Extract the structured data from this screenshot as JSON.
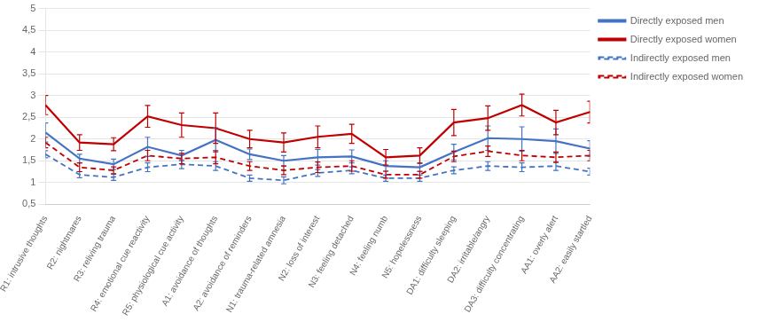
{
  "chart_data": {
    "type": "line",
    "categories": [
      "R1: intrusive thoughts",
      "R2: nightmares",
      "R3: reliving trauma",
      "R4: emotional cue reactivity",
      "R5: physiological cue activity",
      "A1: avoidance of thoughts",
      "A2: avoidance of reminders",
      "N1: trauma-related amnesia",
      "N2: loss of interest",
      "N3: feeling detached",
      "N4: feeling numb",
      "N5: hopelessness",
      "DA1: difficulty sleeping",
      "DA2: irritable/angry",
      "DA3: difficulty concentrating",
      "AA1: overly alert",
      "AA2: easily startled"
    ],
    "series": [
      {
        "name": "Directly exposed men",
        "color": "#4472c4",
        "line_style": "solid",
        "values": [
          2.15,
          1.55,
          1.42,
          1.82,
          1.62,
          1.98,
          1.65,
          1.5,
          1.58,
          1.6,
          1.38,
          1.35,
          1.7,
          2.02,
          2.0,
          1.95,
          1.78
        ],
        "errors": [
          0.22,
          0.1,
          0.12,
          0.22,
          0.12,
          0.28,
          0.12,
          0.12,
          0.18,
          0.15,
          0.12,
          0.1,
          0.18,
          0.28,
          0.28,
          0.28,
          0.18
        ]
      },
      {
        "name": "Directly exposed women",
        "color": "#c00000",
        "line_style": "solid",
        "values": [
          2.78,
          1.92,
          1.88,
          2.52,
          2.32,
          2.25,
          2.0,
          1.92,
          2.05,
          2.12,
          1.58,
          1.62,
          2.38,
          2.48,
          2.78,
          2.38,
          2.62
        ],
        "errors": [
          0.22,
          0.18,
          0.15,
          0.25,
          0.28,
          0.35,
          0.2,
          0.22,
          0.25,
          0.22,
          0.18,
          0.18,
          0.3,
          0.28,
          0.25,
          0.28,
          0.25
        ]
      },
      {
        "name": "Indirectly exposed men",
        "color": "#4472c4",
        "line_style": "dashed",
        "values": [
          1.65,
          1.18,
          1.12,
          1.35,
          1.42,
          1.38,
          1.1,
          1.05,
          1.22,
          1.28,
          1.1,
          1.1,
          1.28,
          1.38,
          1.35,
          1.38,
          1.25
        ],
        "errors": [
          0.08,
          0.07,
          0.07,
          0.1,
          0.1,
          0.1,
          0.07,
          0.08,
          0.08,
          0.08,
          0.07,
          0.07,
          0.08,
          0.1,
          0.1,
          0.1,
          0.08
        ]
      },
      {
        "name": "Indirectly exposed women",
        "color": "#c00000",
        "line_style": "dashed",
        "values": [
          1.92,
          1.35,
          1.28,
          1.62,
          1.55,
          1.58,
          1.38,
          1.28,
          1.35,
          1.38,
          1.18,
          1.18,
          1.6,
          1.72,
          1.62,
          1.58,
          1.62
        ],
        "errors": [
          0.12,
          0.1,
          0.08,
          0.12,
          0.12,
          0.15,
          0.1,
          0.1,
          0.12,
          0.12,
          0.08,
          0.08,
          0.12,
          0.12,
          0.12,
          0.12,
          0.12
        ]
      }
    ],
    "ylim": [
      0.5,
      5.0
    ],
    "yticks": [
      {
        "value": 0.5,
        "label": "0,5"
      },
      1,
      {
        "value": 1.5,
        "label": "1,5"
      },
      2,
      {
        "value": 2.5,
        "label": "2,5"
      },
      3,
      {
        "value": 3.5,
        "label": "3,5"
      },
      4,
      {
        "value": 4.5,
        "label": "4,5"
      },
      5
    ],
    "grid": true,
    "legend": "right"
  }
}
